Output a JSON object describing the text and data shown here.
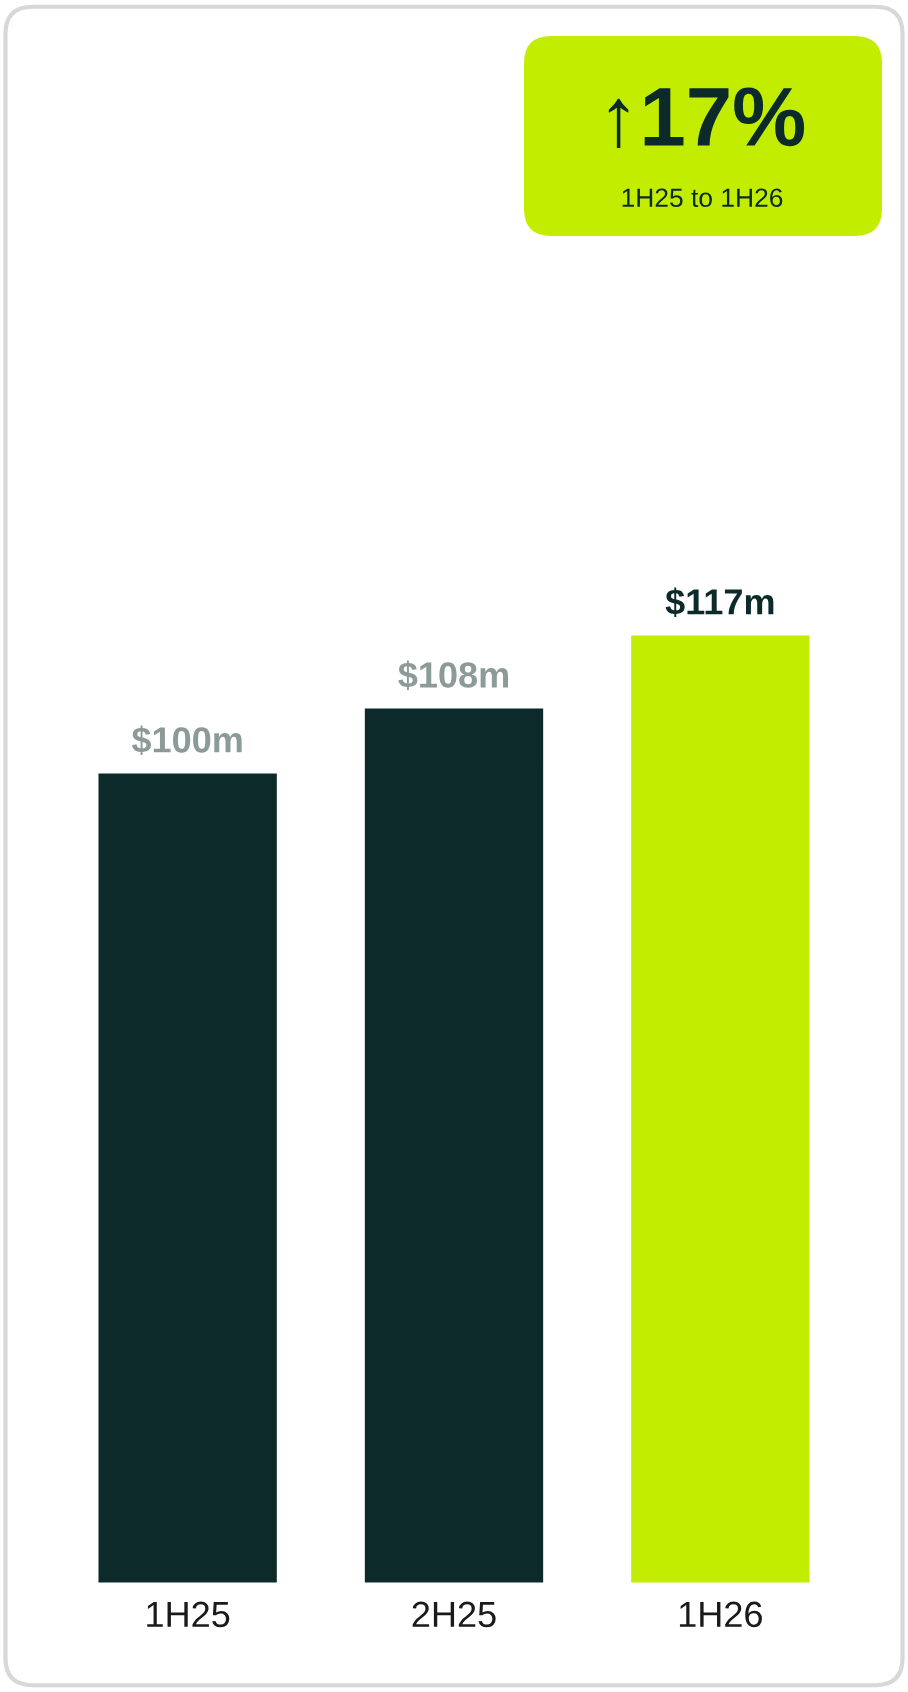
{
  "chart_data": {
    "type": "bar",
    "categories": [
      "1H25",
      "2H25",
      "1H26"
    ],
    "values": [
      100,
      108,
      117
    ],
    "colors": [
      "#0d2a2a",
      "#0d2a2a",
      "#c2ec00"
    ],
    "value_labels": [
      "$100m",
      "$108m",
      "$117m"
    ],
    "tick_labels": "x",
    "grid": false,
    "legend": false,
    "annotations": [
      "↑17%",
      "1H25 to 1H26"
    ]
  }
}
